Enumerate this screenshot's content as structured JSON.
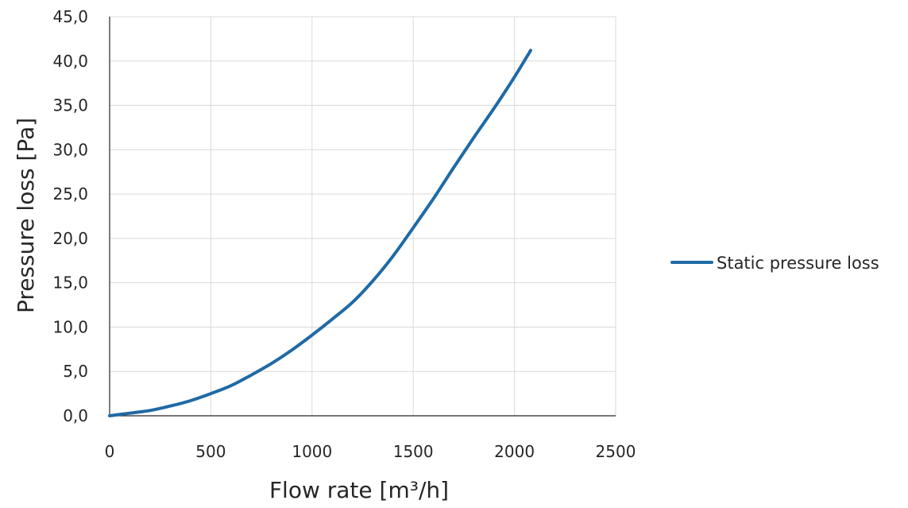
{
  "chart_data": {
    "type": "line",
    "xlabel": "Flow rate [m³/h]",
    "ylabel": "Pressure loss [Pa]",
    "xlim": [
      0,
      2500
    ],
    "ylim": [
      0,
      45
    ],
    "x_ticks": [
      0,
      500,
      1000,
      1500,
      2000,
      2500
    ],
    "x_tick_labels": [
      "0",
      "500",
      "1000",
      "1500",
      "2000",
      "2500"
    ],
    "y_ticks": [
      0,
      5,
      10,
      15,
      20,
      25,
      30,
      35,
      40,
      45
    ],
    "y_tick_labels": [
      "0,0",
      "5,0",
      "10,0",
      "15,0",
      "20,0",
      "25,0",
      "30,0",
      "35,0",
      "40,0",
      "45,0"
    ],
    "grid": "vertical and horizontal",
    "legend_position": "right",
    "series": [
      {
        "name": "Static pressure loss",
        "color": "#1f6aa5",
        "x": [
          0,
          100,
          200,
          300,
          400,
          500,
          600,
          700,
          800,
          900,
          1000,
          1100,
          1200,
          1300,
          1400,
          1500,
          1600,
          1700,
          1800,
          1900,
          2000,
          2080
        ],
        "y": [
          0,
          0.3,
          0.6,
          1.1,
          1.7,
          2.5,
          3.4,
          4.6,
          5.9,
          7.4,
          9.1,
          10.9,
          12.8,
          15.2,
          18.0,
          21.2,
          24.5,
          28.0,
          31.4,
          34.7,
          38.2,
          41.2
        ]
      }
    ]
  }
}
